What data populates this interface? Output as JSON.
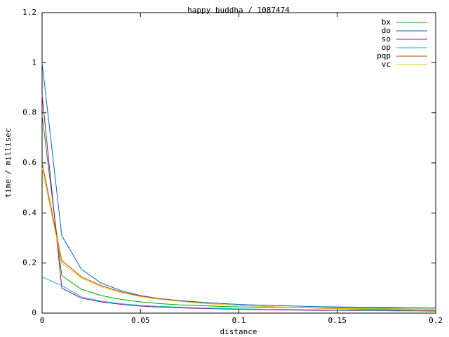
{
  "chart_data": {
    "type": "line",
    "title": "happy buddha / 1087474",
    "x_label": "distance",
    "y_label": "time / millisec",
    "x": [
      0,
      0.01,
      0.02,
      0.03,
      0.04,
      0.05,
      0.06,
      0.07,
      0.08,
      0.09,
      0.1,
      0.11,
      0.12,
      0.13,
      0.14,
      0.15,
      0.16,
      0.17,
      0.18,
      0.19,
      0.2
    ],
    "series": [
      {
        "name": "bx",
        "color": "#00a000",
        "values": [
          0.79,
          0.15,
          0.095,
          0.07,
          0.055,
          0.045,
          0.038,
          0.033,
          0.03,
          0.027,
          0.025,
          0.024,
          0.023,
          0.022,
          0.021,
          0.021,
          0.02,
          0.02,
          0.02,
          0.02,
          0.02
        ]
      },
      {
        "name": "do",
        "color": "#0066cc",
        "values": [
          1.0,
          0.31,
          0.175,
          0.12,
          0.09,
          0.07,
          0.058,
          0.05,
          0.044,
          0.039,
          0.035,
          0.032,
          0.03,
          0.028,
          0.026,
          0.025,
          0.024,
          0.023,
          0.022,
          0.021,
          0.02
        ]
      },
      {
        "name": "so",
        "color": "#a000a0",
        "values": [
          0.87,
          0.1,
          0.06,
          0.045,
          0.035,
          0.028,
          0.024,
          0.021,
          0.019,
          0.017,
          0.015,
          0.014,
          0.013,
          0.012,
          0.011,
          0.011,
          0.01,
          0.01,
          0.009,
          0.009,
          0.008
        ]
      },
      {
        "name": "op",
        "color": "#00c0c0",
        "values": [
          0.145,
          0.11,
          0.065,
          0.048,
          0.038,
          0.031,
          0.027,
          0.024,
          0.021,
          0.019,
          0.017,
          0.016,
          0.015,
          0.014,
          0.013,
          0.012,
          0.012,
          0.011,
          0.011,
          0.01,
          0.01
        ]
      },
      {
        "name": "pqp",
        "color": "#c04000",
        "values": [
          0.6,
          0.21,
          0.145,
          0.11,
          0.085,
          0.068,
          0.057,
          0.048,
          0.041,
          0.035,
          0.031,
          0.028,
          0.025,
          0.022,
          0.02,
          0.018,
          0.016,
          0.014,
          0.013,
          0.011,
          0.01
        ]
      },
      {
        "name": "vc",
        "color": "#e8c800",
        "values": [
          0.58,
          0.2,
          0.14,
          0.105,
          0.082,
          0.066,
          0.055,
          0.047,
          0.04,
          0.035,
          0.031,
          0.028,
          0.025,
          0.023,
          0.021,
          0.019,
          0.018,
          0.017,
          0.016,
          0.015,
          0.015
        ]
      }
    ],
    "xlim": [
      0,
      0.2
    ],
    "xticks": [
      0,
      0.05,
      0.1,
      0.15,
      0.2
    ],
    "ylim": [
      0,
      1.2
    ],
    "yticks": [
      0,
      0.2,
      0.4,
      0.6,
      0.8,
      1,
      1.2
    ],
    "legend": "top-right"
  }
}
